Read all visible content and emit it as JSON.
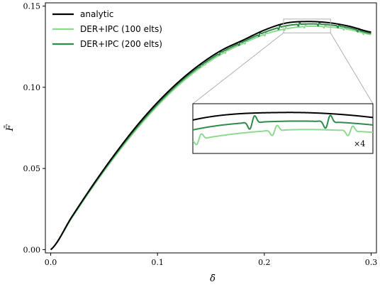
{
  "chart_data": {
    "type": "line",
    "title": "",
    "xlabel": "δ̄",
    "ylabel": "F̄",
    "xlim": [
      -0.005,
      0.305
    ],
    "ylim": [
      -0.002,
      0.152
    ],
    "xticks": [
      0.0,
      0.1,
      0.2,
      0.3
    ],
    "xtick_labels": [
      "0.0",
      "0.1",
      "0.2",
      "0.3"
    ],
    "yticks": [
      0.0,
      0.05,
      0.1,
      0.15
    ],
    "ytick_labels": [
      "0.00",
      "0.05",
      "0.10",
      "0.15"
    ],
    "grid": false,
    "legend_position": "top-left",
    "series": [
      {
        "name": "analytic",
        "color": "#000000",
        "x": [
          0.0,
          0.02,
          0.04,
          0.06,
          0.08,
          0.1,
          0.12,
          0.14,
          0.16,
          0.18,
          0.2,
          0.22,
          0.24,
          0.26,
          0.28,
          0.3
        ],
        "y": [
          0.0,
          0.0205,
          0.0403,
          0.0588,
          0.0758,
          0.0907,
          0.1035,
          0.1142,
          0.1228,
          0.129,
          0.1352,
          0.1395,
          0.1405,
          0.1398,
          0.1375,
          0.134
        ]
      },
      {
        "name": "DER+IPC (100 elts)",
        "color": "#90d990",
        "x": [
          0.0,
          0.02,
          0.04,
          0.06,
          0.08,
          0.1,
          0.12,
          0.14,
          0.16,
          0.18,
          0.2,
          0.22,
          0.24,
          0.26,
          0.28,
          0.3
        ],
        "y": [
          0.0,
          0.0198,
          0.0392,
          0.0573,
          0.0738,
          0.0886,
          0.1014,
          0.112,
          0.1205,
          0.127,
          0.1325,
          0.136,
          0.1375,
          0.1372,
          0.1355,
          0.1325
        ]
      },
      {
        "name": "DER+IPC (200 elts)",
        "color": "#2e8b4a",
        "x": [
          0.0,
          0.02,
          0.04,
          0.06,
          0.08,
          0.1,
          0.12,
          0.14,
          0.16,
          0.18,
          0.2,
          0.22,
          0.24,
          0.26,
          0.28,
          0.3
        ],
        "y": [
          0.0,
          0.0202,
          0.0398,
          0.0581,
          0.0748,
          0.0896,
          0.1025,
          0.1131,
          0.1216,
          0.128,
          0.1338,
          0.1378,
          0.139,
          0.1385,
          0.1365,
          0.1332
        ]
      }
    ],
    "inset": {
      "xlim": [
        0.218,
        0.262
      ],
      "ylim": [
        0.1335,
        0.142
      ],
      "magnification_label": "×4"
    }
  }
}
